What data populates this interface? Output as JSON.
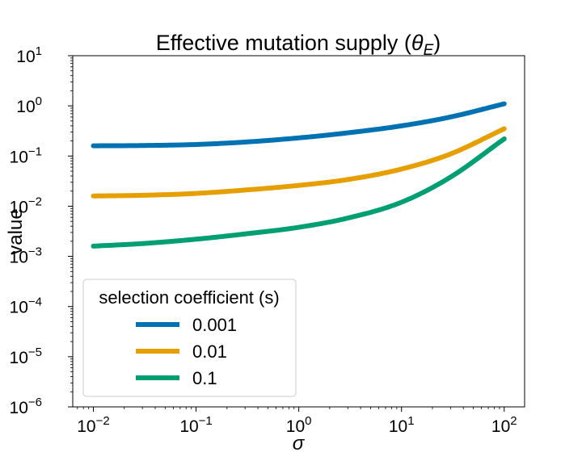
{
  "chart_data": {
    "type": "line",
    "title": "Effective mutation supply (θ_E)",
    "xlabel": "σ",
    "ylabel": "value",
    "xscale": "log",
    "yscale": "log",
    "xlim": [
      0.0063,
      158
    ],
    "ylim": [
      1e-06,
      10
    ],
    "x_ticks": [
      0.01,
      0.1,
      1,
      10,
      100
    ],
    "x_tick_labels": [
      {
        "base": "10",
        "exp": "−2"
      },
      {
        "base": "10",
        "exp": "−1"
      },
      {
        "base": "10",
        "exp": "0"
      },
      {
        "base": "10",
        "exp": "1"
      },
      {
        "base": "10",
        "exp": "2"
      }
    ],
    "y_ticks": [
      1e-06,
      1e-05,
      0.0001,
      0.001,
      0.01,
      0.1,
      1,
      10
    ],
    "y_tick_labels": [
      {
        "base": "10",
        "exp": "−6"
      },
      {
        "base": "10",
        "exp": "−5"
      },
      {
        "base": "10",
        "exp": "−4"
      },
      {
        "base": "10",
        "exp": "−3"
      },
      {
        "base": "10",
        "exp": "−2"
      },
      {
        "base": "10",
        "exp": "−1"
      },
      {
        "base": "10",
        "exp": "0"
      },
      {
        "base": "10",
        "exp": "1"
      }
    ],
    "grid": false,
    "legend": {
      "title": "selection coefficient (s)",
      "location": "lower-left"
    },
    "series": [
      {
        "name": "0.001",
        "color": "#0072B2",
        "x": [
          0.01,
          0.03,
          0.1,
          0.3,
          1,
          3,
          10,
          30,
          100
        ],
        "y": [
          0.16,
          0.162,
          0.17,
          0.19,
          0.23,
          0.29,
          0.4,
          0.6,
          1.1
        ]
      },
      {
        "name": "0.01",
        "color": "#E69F00",
        "x": [
          0.01,
          0.03,
          0.1,
          0.3,
          1,
          3,
          10,
          30,
          100
        ],
        "y": [
          0.016,
          0.0165,
          0.018,
          0.021,
          0.026,
          0.034,
          0.055,
          0.11,
          0.35
        ]
      },
      {
        "name": "0.1",
        "color": "#009E73",
        "x": [
          0.01,
          0.03,
          0.1,
          0.3,
          1,
          3,
          10,
          30,
          100
        ],
        "y": [
          0.0016,
          0.0018,
          0.0022,
          0.0028,
          0.0038,
          0.0058,
          0.012,
          0.038,
          0.22
        ]
      }
    ]
  }
}
